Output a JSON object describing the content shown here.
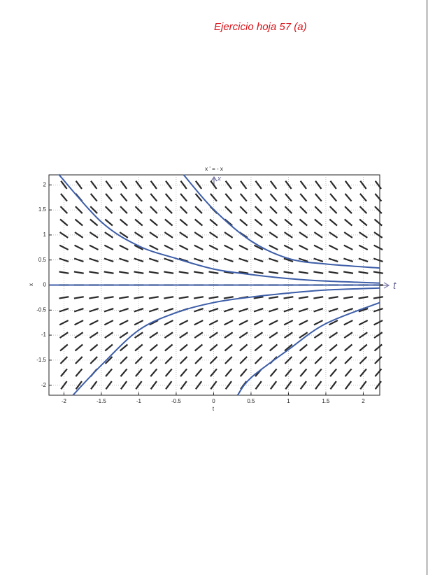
{
  "heading": "Ejercicio hoja 57 (a)",
  "chart_data": {
    "type": "slope-field",
    "title": "x ' = - x",
    "xlabel": "t",
    "ylabel": "x",
    "annotations": {
      "t_axis": "t",
      "x_axis": "x"
    },
    "xlim": [
      -2.2,
      2.22
    ],
    "ylim": [
      -2.2,
      2.2
    ],
    "xticks": [
      -2,
      -1.5,
      -1,
      -0.5,
      0,
      0.5,
      1,
      1.5,
      2
    ],
    "yticks": [
      -2,
      -1.5,
      -1,
      -0.5,
      0,
      0.5,
      1,
      1.5,
      2
    ],
    "grid": true,
    "field": {
      "color": "#2a2a2a",
      "t": [
        -2,
        -1.8,
        -1.6,
        -1.4,
        -1.2,
        -1,
        -0.8,
        -0.6,
        -0.4,
        -0.2,
        0,
        0.2,
        0.4,
        0.6,
        0.8,
        1,
        1.2,
        1.4,
        1.6,
        1.8,
        2,
        2.2
      ],
      "x": [
        -2,
        -1.75,
        -1.5,
        -1.25,
        -1,
        -0.75,
        -0.5,
        -0.25,
        0,
        0.25,
        0.5,
        0.75,
        1,
        1.25,
        1.5,
        1.75,
        2
      ]
    },
    "curves": [
      {
        "color": "#3d5ea8",
        "x": [
          -2.07,
          -1.5,
          -1,
          -0.5,
          0,
          0.5,
          1,
          1.5,
          2.22
        ],
        "values": [
          2.21,
          1.26,
          0.78,
          0.53,
          0.32,
          0.21,
          0.13,
          0.08,
          0.04
        ]
      },
      {
        "color": "#3d5ea8",
        "x": [
          -0.4,
          0,
          0.5,
          1,
          1.5,
          2.22
        ],
        "values": [
          2.2,
          1.51,
          0.88,
          0.53,
          0.42,
          0.34
        ]
      },
      {
        "color": "#3d5ea8",
        "x": [
          -2.2,
          2.22
        ],
        "values": [
          0,
          0
        ]
      },
      {
        "color": "#3d5ea8",
        "x": [
          -1.88,
          -1.5,
          -1,
          -0.5,
          0,
          0.5,
          1,
          1.5,
          2.22
        ],
        "values": [
          -2.2,
          -1.6,
          -0.9,
          -0.55,
          -0.35,
          -0.24,
          -0.16,
          -0.1,
          -0.06
        ]
      },
      {
        "color": "#3d5ea8",
        "x": [
          0.32,
          0.5,
          1,
          1.5,
          2.22
        ],
        "values": [
          -2.2,
          -1.85,
          -1.29,
          -0.77,
          -0.35
        ]
      }
    ]
  }
}
